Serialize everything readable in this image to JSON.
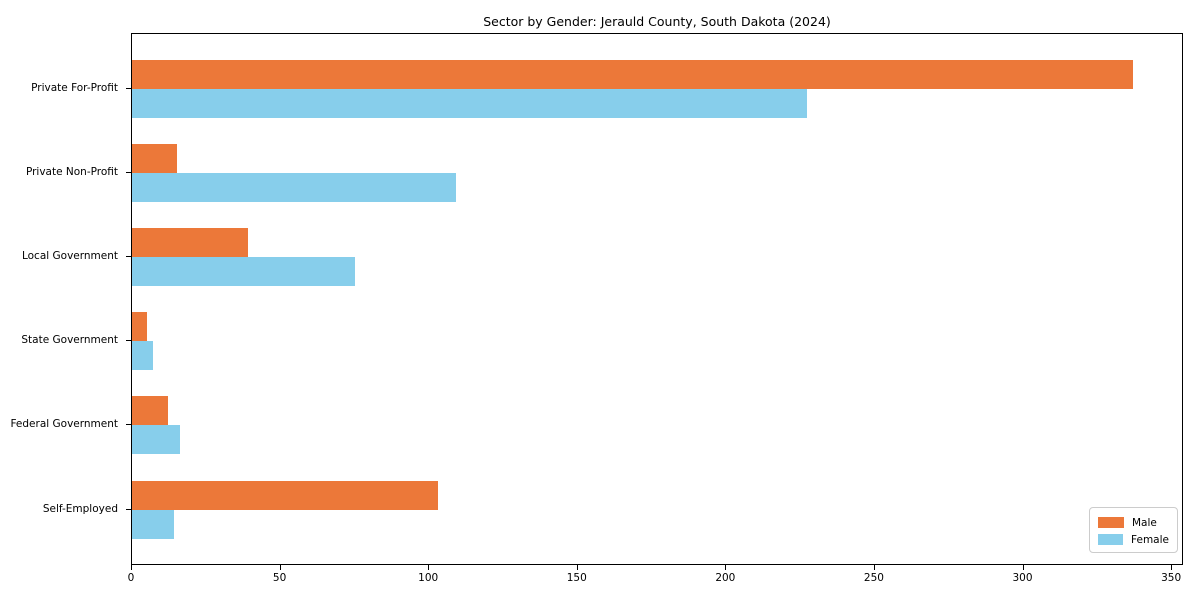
{
  "chart_data": {
    "type": "bar",
    "orientation": "horizontal",
    "title": "Sector by Gender: Jerauld County, South Dakota (2024)",
    "categories": [
      "Private For-Profit",
      "Private Non-Profit",
      "Local Government",
      "State Government",
      "Federal Government",
      "Self-Employed"
    ],
    "series": [
      {
        "name": "Male",
        "color": "#EC7839",
        "values": [
          337,
          15,
          39,
          5,
          12,
          103
        ]
      },
      {
        "name": "Female",
        "color": "#87CEEB",
        "values": [
          227,
          109,
          75,
          7,
          16,
          14
        ]
      }
    ],
    "xlabel": "",
    "ylabel": "",
    "x_ticks": [
      0,
      50,
      100,
      150,
      200,
      250,
      300,
      350
    ],
    "xlim": [
      0,
      354
    ],
    "grid": false,
    "legend_position": "lower right",
    "axis_color": "#000000",
    "background_color": "#ffffff"
  }
}
